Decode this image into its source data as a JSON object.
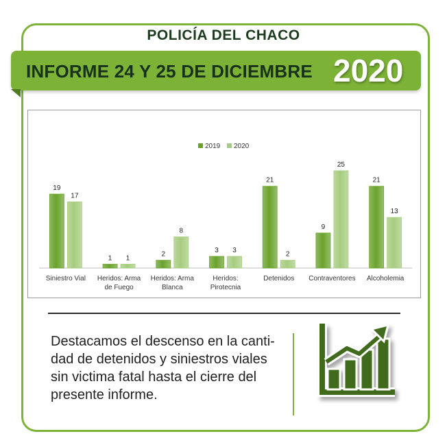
{
  "header": {
    "org": "POLICÍA DEL CHACO",
    "title": "INFORME 24 Y 25 DE DICIEMBRE",
    "year": "2020"
  },
  "chart_data": {
    "type": "bar",
    "title": "",
    "xlabel": "",
    "ylabel": "",
    "legend_position": "top",
    "grid": false,
    "categories": [
      [
        "Siniestro Vial"
      ],
      [
        "Heridos: Arma",
        "de Fuego"
      ],
      [
        "Heridos: Arma",
        "Blanca"
      ],
      [
        "Heridos:",
        "Pirotecnia"
      ],
      [
        "Detenidos"
      ],
      [
        "Contraventores"
      ],
      [
        "Alcoholemia"
      ]
    ],
    "series": [
      {
        "name": "2019",
        "color": "#6aa22c",
        "values": [
          19,
          1,
          2,
          3,
          21,
          9,
          21
        ]
      },
      {
        "name": "2020",
        "color": "#a6cc7e",
        "values": [
          17,
          1,
          8,
          3,
          2,
          25,
          13
        ]
      }
    ],
    "ylim": [
      0,
      25
    ]
  },
  "note": {
    "lines": [
      "Destacamos el descenso en la canti-",
      "dad de detenidos y siniestros viales",
      "sin victima fatal hasta el cierre del",
      "presente informe."
    ]
  },
  "icon": {
    "name": "growth-chart-icon",
    "color": "#3f6b1f"
  }
}
